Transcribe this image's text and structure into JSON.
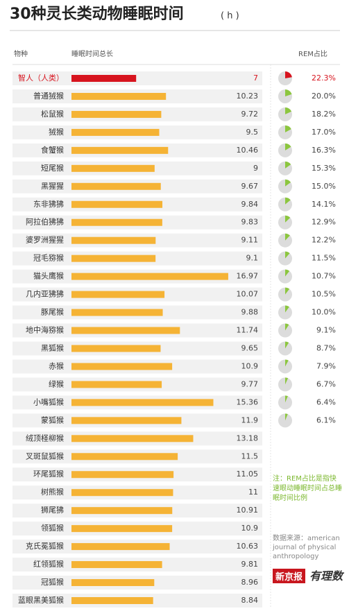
{
  "chart_data": {
    "type": "bar",
    "title": "30种灵长类动物睡眠时间",
    "unit": "( h )",
    "headers": [
      "物种",
      "睡眠时间总长",
      "REM占比"
    ],
    "categories": [
      "智人（人类）",
      "普通狨猴",
      "松鼠猴",
      "狨猴",
      "食蟹猴",
      "短尾猴",
      "黑猩猩",
      "东非狒狒",
      "阿拉伯狒狒",
      "婆罗洲猩猩",
      "冠毛猕猴",
      "猫头鹰猴",
      "几内亚狒狒",
      "豚尾猴",
      "地中海猕猴",
      "黑狐猴",
      "赤猴",
      "绿猴",
      "小嘴狐猴",
      "蒙狐猴",
      "绒顶柽柳猴",
      "叉斑鼠狐猴",
      "环尾狐猴",
      "树熊猴",
      "狮尾狒",
      "领狐猴",
      "克氏冕狐猴",
      "红领狐猴",
      "冠狐猴",
      "蓝眼黑美狐猴"
    ],
    "values": [
      7,
      10.23,
      9.72,
      9.5,
      10.46,
      9,
      9.67,
      9.84,
      9.83,
      9.11,
      9.1,
      16.97,
      10.07,
      9.88,
      11.74,
      9.65,
      10.9,
      9.77,
      15.36,
      11.9,
      13.18,
      11.5,
      11.05,
      11,
      10.91,
      10.9,
      10.63,
      9.81,
      8.96,
      8.84
    ],
    "color": "#f5b335",
    "highlight_color": "#d7141e",
    "highlight_index": 0,
    "xlim": [
      0,
      17.5
    ],
    "rem": {
      "values": [
        22.3,
        20.0,
        18.2,
        17.0,
        16.3,
        15.3,
        15.0,
        14.1,
        12.9,
        12.2,
        11.5,
        10.7,
        10.5,
        10.0,
        9.1,
        8.7,
        7.9,
        6.7,
        6.4,
        6.1,
        null,
        null,
        null,
        null,
        null,
        null,
        null,
        null,
        null,
        null
      ],
      "value_labels": [
        "22.3%",
        "20.0%",
        "18.2%",
        "17.0%",
        "16.3%",
        "15.3%",
        "15.0%",
        "14.1%",
        "12.9%",
        "12.2%",
        "11.5%",
        "10.7%",
        "10.5%",
        "10.0%",
        "9.1%",
        "8.7%",
        "7.9%",
        "6.7%",
        "6.4%",
        "6.1%",
        null,
        null,
        null,
        null,
        null,
        null,
        null,
        null,
        null,
        null
      ],
      "color": "#8cc63f",
      "track_color": "#dcdcdc"
    },
    "note": "注：REM占比是指快速眼动睡眠时间占总睡眠时间比例",
    "source": "数据来源：american journal of physical anthropology",
    "logo": "新京报",
    "logo_text": "有理数"
  }
}
